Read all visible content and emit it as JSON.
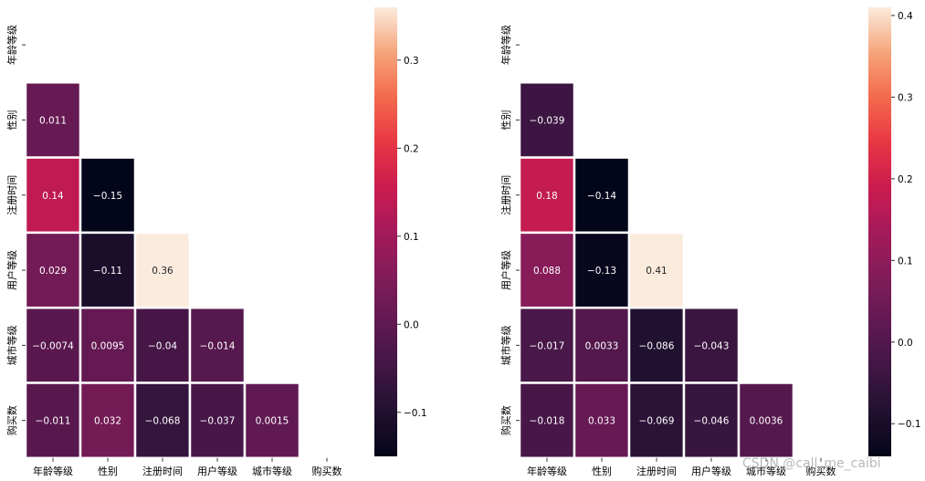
{
  "watermark": "CSDN @call_me_caibi",
  "chart_data": [
    {
      "type": "heatmap",
      "mask": "upper-triangle",
      "labels": [
        "年龄等级",
        "性别",
        "注册时间",
        "用户等级",
        "城市等级",
        "购买数"
      ],
      "colormap": "rocket",
      "vmin": -0.15,
      "vmax": 0.36,
      "colorbar_ticks": [
        -0.1,
        0.0,
        0.1,
        0.2,
        0.3
      ],
      "colorbar_tick_labels": [
        "−0.1",
        "0.0",
        "0.1",
        "0.2",
        "0.3"
      ],
      "cells": [
        {
          "row": 1,
          "col": 0,
          "value": 0.011,
          "label": "0.011"
        },
        {
          "row": 2,
          "col": 0,
          "value": 0.14,
          "label": "0.14"
        },
        {
          "row": 2,
          "col": 1,
          "value": -0.15,
          "label": "−0.15"
        },
        {
          "row": 3,
          "col": 0,
          "value": 0.029,
          "label": "0.029"
        },
        {
          "row": 3,
          "col": 1,
          "value": -0.11,
          "label": "−0.11"
        },
        {
          "row": 3,
          "col": 2,
          "value": 0.36,
          "label": "0.36"
        },
        {
          "row": 4,
          "col": 0,
          "value": -0.0074,
          "label": "−0.0074"
        },
        {
          "row": 4,
          "col": 1,
          "value": 0.0095,
          "label": "0.0095"
        },
        {
          "row": 4,
          "col": 2,
          "value": -0.04,
          "label": "−0.04"
        },
        {
          "row": 4,
          "col": 3,
          "value": -0.014,
          "label": "−0.014"
        },
        {
          "row": 5,
          "col": 0,
          "value": -0.011,
          "label": "−0.011"
        },
        {
          "row": 5,
          "col": 1,
          "value": 0.032,
          "label": "0.032"
        },
        {
          "row": 5,
          "col": 2,
          "value": -0.068,
          "label": "−0.068"
        },
        {
          "row": 5,
          "col": 3,
          "value": -0.037,
          "label": "−0.037"
        },
        {
          "row": 5,
          "col": 4,
          "value": 0.0015,
          "label": "0.0015"
        }
      ]
    },
    {
      "type": "heatmap",
      "mask": "upper-triangle",
      "labels": [
        "年龄等级",
        "性别",
        "注册时间",
        "用户等级",
        "城市等级",
        "购买数"
      ],
      "colormap": "rocket",
      "vmin": -0.14,
      "vmax": 0.41,
      "colorbar_ticks": [
        -0.1,
        0.0,
        0.1,
        0.2,
        0.3,
        0.4
      ],
      "colorbar_tick_labels": [
        "−0.1",
        "0.0",
        "0.1",
        "0.2",
        "0.3",
        "0.4"
      ],
      "cells": [
        {
          "row": 1,
          "col": 0,
          "value": -0.039,
          "label": "−0.039"
        },
        {
          "row": 2,
          "col": 0,
          "value": 0.18,
          "label": "0.18"
        },
        {
          "row": 2,
          "col": 1,
          "value": -0.14,
          "label": "−0.14"
        },
        {
          "row": 3,
          "col": 0,
          "value": 0.088,
          "label": "0.088"
        },
        {
          "row": 3,
          "col": 1,
          "value": -0.13,
          "label": "−0.13"
        },
        {
          "row": 3,
          "col": 2,
          "value": 0.41,
          "label": "0.41"
        },
        {
          "row": 4,
          "col": 0,
          "value": -0.017,
          "label": "−0.017"
        },
        {
          "row": 4,
          "col": 1,
          "value": 0.0033,
          "label": "0.0033"
        },
        {
          "row": 4,
          "col": 2,
          "value": -0.086,
          "label": "−0.086"
        },
        {
          "row": 4,
          "col": 3,
          "value": -0.043,
          "label": "−0.043"
        },
        {
          "row": 5,
          "col": 0,
          "value": -0.018,
          "label": "−0.018"
        },
        {
          "row": 5,
          "col": 1,
          "value": 0.033,
          "label": "0.033"
        },
        {
          "row": 5,
          "col": 2,
          "value": -0.069,
          "label": "−0.069"
        },
        {
          "row": 5,
          "col": 3,
          "value": -0.046,
          "label": "−0.046"
        },
        {
          "row": 5,
          "col": 4,
          "value": 0.0036,
          "label": "0.0036"
        }
      ]
    }
  ]
}
